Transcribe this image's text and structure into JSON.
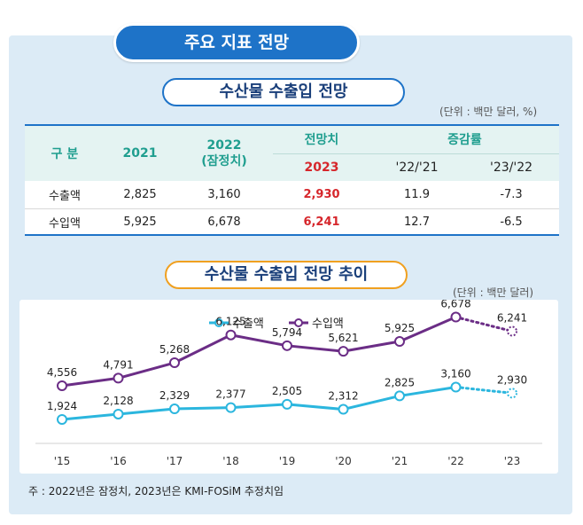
{
  "header": {
    "main_title": "주요 지표 전망",
    "table_title": "수산물 수출입 전망",
    "table_unit": "(단위 : 백만 달러, %)",
    "chart_title": "수산물 수출입 전망 추이",
    "chart_unit": "(단위 : 백만 달러)"
  },
  "table": {
    "col_category": "구 분",
    "col_2021": "2021",
    "col_2022_line1": "2022",
    "col_2022_line2": "(잠정치)",
    "col_forecast": "전망치",
    "col_forecast_year": "2023",
    "col_growth": "증감률",
    "col_growth_a": "'22/'21",
    "col_growth_b": "'23/'22",
    "rows": [
      {
        "label": "수출액",
        "v2021": "2,825",
        "v2022": "3,160",
        "v2023": "2,930",
        "g1": "11.9",
        "g2": "-7.3"
      },
      {
        "label": "수입액",
        "v2021": "5,925",
        "v2022": "6,678",
        "v2023": "6,241",
        "g1": "12.7",
        "g2": "-6.5"
      }
    ]
  },
  "chart_data": {
    "type": "line",
    "categories": [
      "'15",
      "'16",
      "'17",
      "'18",
      "'19",
      "'20",
      "'21",
      "'22",
      "'23"
    ],
    "forecast_index": 8,
    "series": [
      {
        "name": "수출액",
        "color": "#2bb6de",
        "values": [
          1924,
          2128,
          2329,
          2377,
          2505,
          2312,
          2825,
          3160,
          2930
        ],
        "labels": [
          "1,924",
          "2,128",
          "2,329",
          "2,377",
          "2,505",
          "2,312",
          "2,825",
          "3,160",
          "2,930"
        ]
      },
      {
        "name": "수입액",
        "color": "#6b2d86",
        "values": [
          4556,
          4791,
          5268,
          6125,
          5794,
          5621,
          5925,
          6678,
          6241
        ],
        "labels": [
          "4,556",
          "4,791",
          "5,268",
          "6,125",
          "5,794",
          "5,621",
          "5,925",
          "6,678",
          "6,241"
        ]
      }
    ]
  },
  "footnote": "주 : 2022년은 잠정치, 2023년은 KMI-FOSiM 추정치임"
}
